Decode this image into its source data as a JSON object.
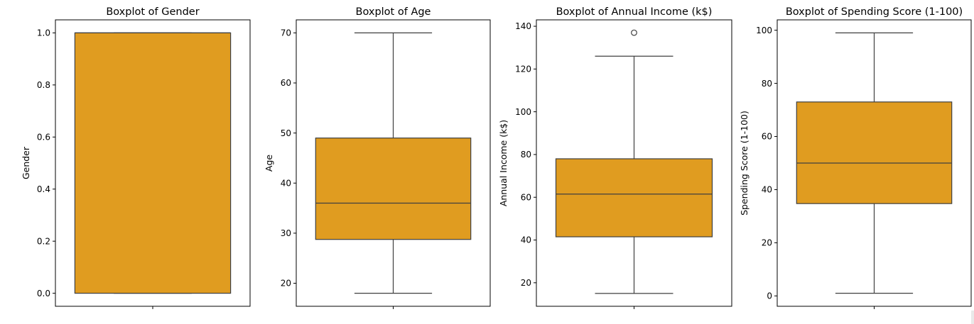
{
  "chart_data": [
    {
      "type": "boxplot",
      "title": "Boxplot of Gender",
      "ylabel": "Gender",
      "ylim": [
        -0.05,
        1.05
      ],
      "yticks": [
        0.0,
        0.2,
        0.4,
        0.6,
        0.8,
        1.0
      ],
      "ytick_labels": [
        "0.0",
        "0.2",
        "0.4",
        "0.6",
        "0.8",
        "1.0"
      ],
      "stats": {
        "whislo": 0.0,
        "q1": 0.0,
        "med": 1.0,
        "q3": 1.0,
        "whishi": 1.0
      },
      "fliers": [],
      "color": "#E09C20"
    },
    {
      "type": "boxplot",
      "title": "Boxplot of Age",
      "ylabel": "Age",
      "ylim": [
        15.4,
        72.6
      ],
      "yticks": [
        20,
        30,
        40,
        50,
        60,
        70
      ],
      "ytick_labels": [
        "20",
        "30",
        "40",
        "50",
        "60",
        "70"
      ],
      "stats": {
        "whislo": 18,
        "q1": 28.75,
        "med": 36,
        "q3": 49,
        "whishi": 70
      },
      "fliers": [],
      "color": "#E09C20"
    },
    {
      "type": "boxplot",
      "title": "Boxplot of Annual Income (k$)",
      "ylabel": "Annual Income (k$)",
      "ylim": [
        9,
        143
      ],
      "yticks": [
        20,
        40,
        60,
        80,
        100,
        120,
        140
      ],
      "ytick_labels": [
        "20",
        "40",
        "60",
        "80",
        "100",
        "120",
        "140"
      ],
      "stats": {
        "whislo": 15,
        "q1": 41.5,
        "med": 61.5,
        "q3": 78,
        "whishi": 126
      },
      "fliers": [
        137
      ],
      "color": "#E09C20"
    },
    {
      "type": "boxplot",
      "title": "Boxplot of Spending Score (1-100)",
      "ylabel": "Spending Score (1-100)",
      "ylim": [
        -3.9,
        103.9
      ],
      "yticks": [
        0,
        20,
        40,
        60,
        80,
        100
      ],
      "ytick_labels": [
        "0",
        "20",
        "40",
        "60",
        "80",
        "100"
      ],
      "stats": {
        "whislo": 1,
        "q1": 34.75,
        "med": 50,
        "q3": 73,
        "whishi": 99
      },
      "fliers": [],
      "color": "#E09C20"
    }
  ]
}
